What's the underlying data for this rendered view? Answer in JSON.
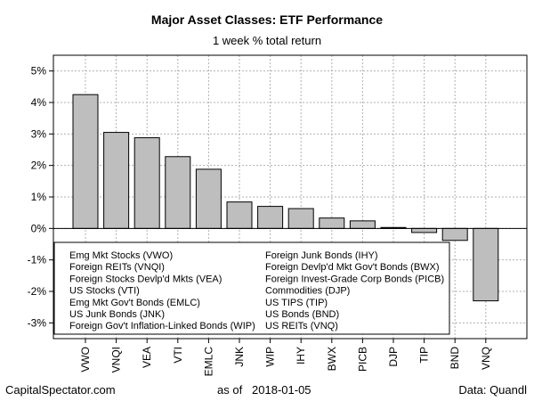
{
  "chart_data": {
    "type": "bar",
    "title": "Major Asset Classes: ETF Performance",
    "subtitle": "1 week % total return",
    "categories": [
      "VWO",
      "VNQI",
      "VEA",
      "VTI",
      "EMLC",
      "JNK",
      "WIP",
      "IHY",
      "BWX",
      "PICB",
      "DJP",
      "TIP",
      "BND",
      "VNQ"
    ],
    "values": [
      4.25,
      3.05,
      2.88,
      2.28,
      1.88,
      0.84,
      0.7,
      0.63,
      0.33,
      0.24,
      0.03,
      -0.13,
      -0.38,
      -2.3
    ],
    "ylim": [
      -3.5,
      5.5
    ],
    "yticks": [
      -3,
      -2,
      -1,
      0,
      1,
      2,
      3,
      4,
      5
    ],
    "ytick_labels": [
      "-3%",
      "-2%",
      "-1%",
      "0%",
      "1%",
      "2%",
      "3%",
      "4%",
      "5%"
    ],
    "grid": true,
    "bar_color": "#bebebe",
    "grid_color": "#b0b0b0",
    "legend_placement": "bottom-left",
    "legend_left": [
      "Emg Mkt Stocks (VWO)",
      "Foreign REITs (VNQI)",
      "Foreign Stocks Devlp'd Mkts (VEA)",
      "US Stocks (VTI)",
      "Emg Mkt Gov't Bonds (EMLC)",
      "US Junk Bonds (JNK)",
      "Foreign Gov't Inflation-Linked Bonds (WIP)"
    ],
    "legend_right": [
      "Foreign Junk Bonds (IHY)",
      "Foreign Devlp'd Mkt Gov't Bonds (BWX)",
      "Foreign Invest-Grade Corp Bonds (PICB)",
      "Commodities (DJP)",
      "US TIPS (TIP)",
      "US Bonds (BND)",
      "US REITs (VNQ)"
    ]
  },
  "footer": {
    "source_site": "CapitalSpectator.com",
    "as_of_label": "as of",
    "as_of_date": "2018-01-05",
    "data_credit": "Data: Quandl"
  }
}
